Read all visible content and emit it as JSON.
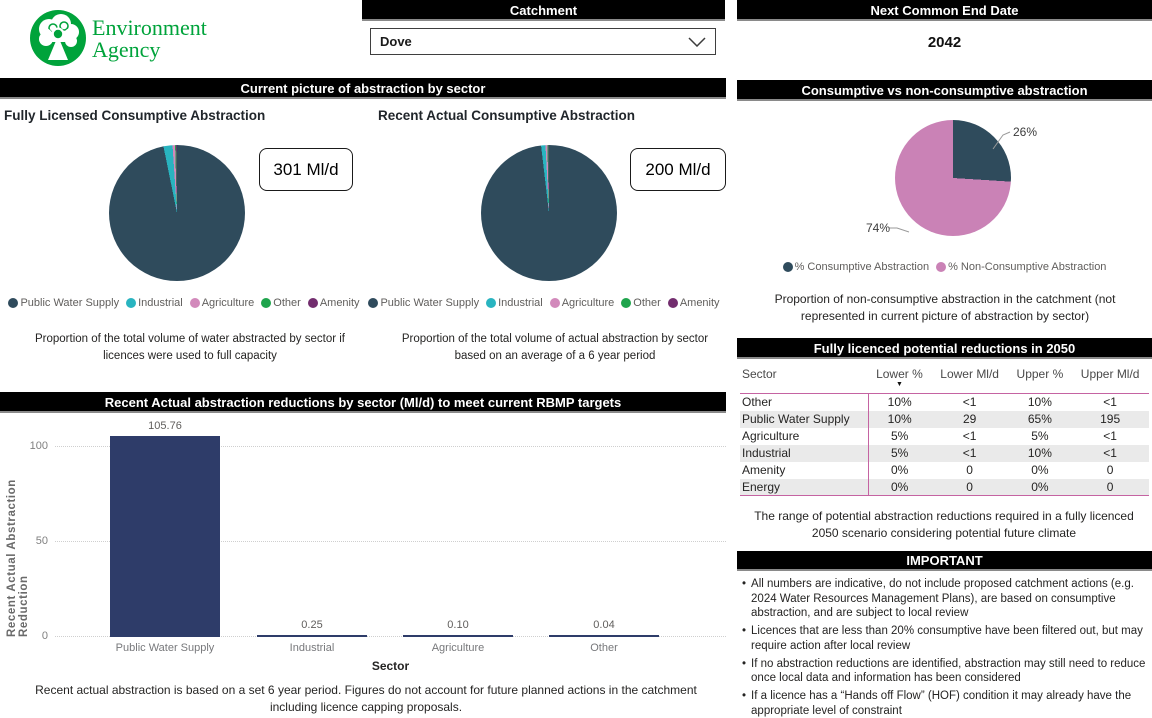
{
  "logo": {
    "org_line1": "Environment",
    "org_line2": "Agency"
  },
  "top": {
    "catchment_header": "Catchment",
    "catchment_value": "Dove",
    "end_date_header": "Next Common End Date",
    "end_date_value": "2042"
  },
  "colors": {
    "public_water_supply": "#2f4b5c",
    "industrial": "#29b4c0",
    "agriculture": "#d289bb",
    "other": "#1fa44c",
    "amenity": "#722d6e",
    "non_consumptive_pink": "#ca82b6",
    "bar_navy": "#2e3c69",
    "table_line_pink": "#c563a2",
    "ea_green": "#00a33b",
    "header_bg": "#000000"
  },
  "sector_section": {
    "header": "Current picture of abstraction by sector",
    "licensed": {
      "title": "Fully Licensed Consumptive Abstraction",
      "total": "301 Ml/d",
      "caption": "Proportion of the total volume of water abstracted by sector if licences were used to full capacity"
    },
    "actual": {
      "title": "Recent Actual Consumptive Abstraction",
      "total": "200 Ml/d",
      "caption": "Proportion of the total volume of actual abstraction by sector based on an average of a 6 year period"
    },
    "legend": [
      {
        "label": "Public Water Supply",
        "color": "#2f4b5c"
      },
      {
        "label": "Industrial",
        "color": "#29b4c0"
      },
      {
        "label": "Agriculture",
        "color": "#d289bb"
      },
      {
        "label": "Other",
        "color": "#1fa44c"
      },
      {
        "label": "Amenity",
        "color": "#722d6e"
      }
    ]
  },
  "consumptive_section": {
    "header": "Consumptive vs non-consumptive abstraction",
    "legend": [
      {
        "label": "% Consumptive Abstraction",
        "color": "#2f4b5c"
      },
      {
        "label": "% Non-Consumptive Abstraction",
        "color": "#ca82b6"
      }
    ],
    "caption": "Proportion of non-consumptive abstraction in the catchment (not represented in current picture of abstraction by sector)"
  },
  "reductions_table": {
    "header": "Fully licenced potential reductions in 2050",
    "columns": [
      "Sector",
      "Lower %",
      "Lower Ml/d",
      "Upper %",
      "Upper Ml/d"
    ],
    "sorted_by": "Lower %",
    "rows": [
      {
        "sector": "Other",
        "lower_pct": "10%",
        "lower_mld": "<1",
        "upper_pct": "10%",
        "upper_mld": "<1"
      },
      {
        "sector": "Public Water Supply",
        "lower_pct": "10%",
        "lower_mld": "29",
        "upper_pct": "65%",
        "upper_mld": "195"
      },
      {
        "sector": "Agriculture",
        "lower_pct": "5%",
        "lower_mld": "<1",
        "upper_pct": "5%",
        "upper_mld": "<1"
      },
      {
        "sector": "Industrial",
        "lower_pct": "5%",
        "lower_mld": "<1",
        "upper_pct": "10%",
        "upper_mld": "<1"
      },
      {
        "sector": "Amenity",
        "lower_pct": "0%",
        "lower_mld": "0",
        "upper_pct": "0%",
        "upper_mld": "0"
      },
      {
        "sector": "Energy",
        "lower_pct": "0%",
        "lower_mld": "0",
        "upper_pct": "0%",
        "upper_mld": "0"
      }
    ],
    "caption": "The range of potential abstraction reductions required in a fully licenced 2050 scenario considering potential future climate"
  },
  "bar_section": {
    "header": "Recent Actual abstraction reductions by sector (Ml/d) to meet current RBMP targets",
    "caption": "Recent actual abstraction is based on a set 6 year period. Figures do not account for future planned actions in the catchment including licence capping proposals."
  },
  "important": {
    "header": "IMPORTANT",
    "bullets": [
      "All numbers are indicative, do not include proposed catchment actions (e.g. 2024 Water Resources Management Plans), are based on consumptive abstraction, and are subject to local review",
      "Licences that are less than 20% consumptive have been filtered out, but may require action after local review",
      "If no abstraction reductions are identified, abstraction may still need to reduce once local data and information has been considered",
      "If a licence has a “Hands off Flow” (HOF) condition it may already have the appropriate level of constraint"
    ]
  },
  "chart_data": [
    {
      "type": "pie",
      "title": "Fully Licensed Consumptive Abstraction",
      "total_label": "301 Ml/d",
      "categories": [
        "Public Water Supply",
        "Industrial",
        "Agriculture",
        "Other",
        "Amenity"
      ],
      "values_pct_approx": [
        96.8,
        2.1,
        0.6,
        0.3,
        0.2
      ],
      "colors": [
        "#2f4b5c",
        "#29b4c0",
        "#d289bb",
        "#1fa44c",
        "#722d6e"
      ],
      "legend_position": "bottom"
    },
    {
      "type": "pie",
      "title": "Recent Actual Consumptive Abstraction",
      "total_label": "200 Ml/d",
      "categories": [
        "Public Water Supply",
        "Industrial",
        "Agriculture",
        "Other",
        "Amenity"
      ],
      "values_pct_approx": [
        98.1,
        1.0,
        0.5,
        0.2,
        0.2
      ],
      "colors": [
        "#2f4b5c",
        "#29b4c0",
        "#d289bb",
        "#1fa44c",
        "#722d6e"
      ],
      "legend_position": "bottom"
    },
    {
      "type": "pie",
      "title": "Consumptive vs non-consumptive abstraction",
      "categories": [
        "% Consumptive Abstraction",
        "% Non-Consumptive Abstraction"
      ],
      "values": [
        26,
        74
      ],
      "point_labels": [
        "26%",
        "74%"
      ],
      "colors": [
        "#2f4b5c",
        "#ca82b6"
      ],
      "legend_position": "bottom"
    },
    {
      "type": "bar",
      "title": "Recent Actual abstraction reductions by sector (Ml/d) to meet current RBMP targets",
      "categories": [
        "Public Water Supply",
        "Industrial",
        "Agriculture",
        "Other"
      ],
      "values": [
        105.76,
        0.25,
        0.1,
        0.04
      ],
      "value_labels": [
        "105.76",
        "0.25",
        "0.10",
        "0.04"
      ],
      "xlabel": "Sector",
      "ylabel": "Recent Actual Abstraction Reduction",
      "yticks": [
        0,
        50,
        100
      ],
      "ylim": [
        0,
        110
      ],
      "grid": "horizontal-dotted",
      "bar_color": "#2e3c69"
    }
  ]
}
